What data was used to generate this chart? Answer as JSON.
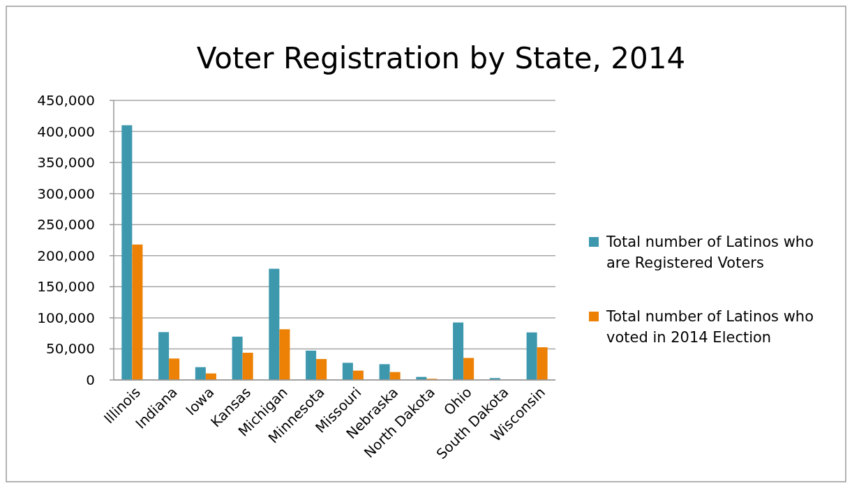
{
  "chart_data": {
    "type": "bar",
    "title": "Voter Registration by State, 2014",
    "categories": [
      "Illinois",
      "Indiana",
      "Iowa",
      "Kansas",
      "Michigan",
      "Minnesota",
      "Missouri",
      "Nebraska",
      "North Dakota",
      "Ohio",
      "South Dakota",
      "Wisconsin"
    ],
    "series": [
      {
        "name": "Total number of Latinos who are Registered Voters",
        "color": "#3d98ae",
        "values": [
          410000,
          77000,
          20600,
          69700,
          179000,
          47200,
          27600,
          25400,
          4900,
          92500,
          3000,
          76500
        ]
      },
      {
        "name": "Total number of Latinos who voted in 2014 Election",
        "color": "#ec8106",
        "values": [
          218000,
          34500,
          10500,
          43800,
          81600,
          33700,
          15000,
          12700,
          1900,
          35400,
          0,
          52600
        ]
      }
    ],
    "ylim": [
      0,
      450000
    ],
    "yticks": [
      {
        "value": 0,
        "label": "0"
      },
      {
        "value": 50000,
        "label": "50,000"
      },
      {
        "value": 100000,
        "label": "100,000"
      },
      {
        "value": 150000,
        "label": "150,000"
      },
      {
        "value": 200000,
        "label": "200,000"
      },
      {
        "value": 250000,
        "label": "250,000"
      },
      {
        "value": 300000,
        "label": "300,000"
      },
      {
        "value": 350000,
        "label": "350,000"
      },
      {
        "value": 400000,
        "label": "400,000"
      },
      {
        "value": 450000,
        "label": "450,000"
      }
    ],
    "grid": "y",
    "legend": "right"
  }
}
